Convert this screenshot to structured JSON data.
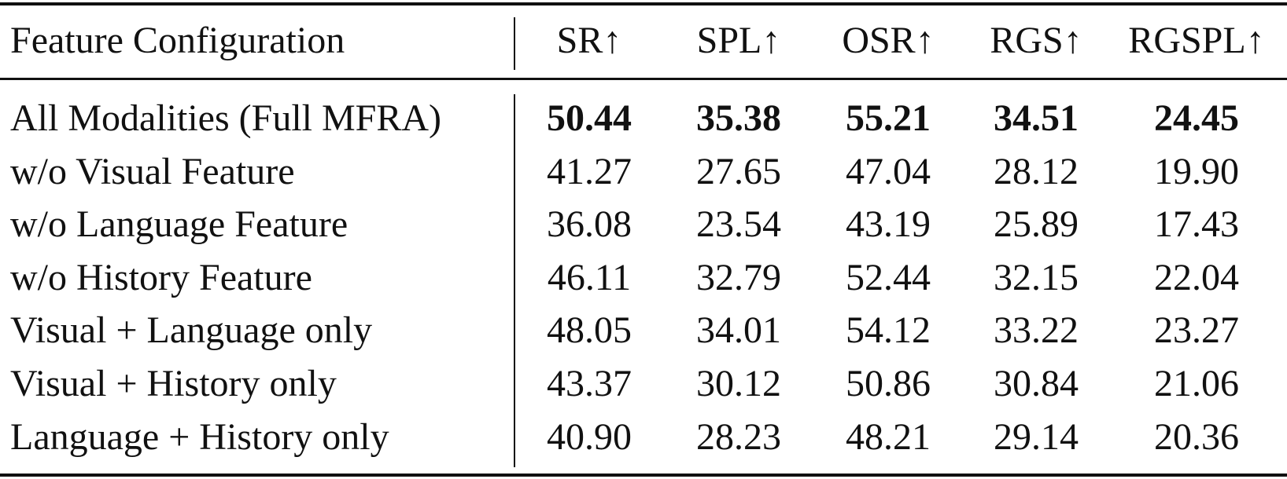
{
  "table": {
    "header": [
      "Feature Configuration",
      "SR↑",
      "SPL↑",
      "OSR↑",
      "RGS↑",
      "RGSPL↑"
    ],
    "rows": [
      [
        "All Modalities (Full MFRA)",
        "50.44",
        "35.38",
        "55.21",
        "34.51",
        "24.45"
      ],
      [
        "w/o Visual Feature",
        "41.27",
        "27.65",
        "47.04",
        "28.12",
        "19.90"
      ],
      [
        "w/o Language Feature",
        "36.08",
        "23.54",
        "43.19",
        "25.89",
        "17.43"
      ],
      [
        "w/o History Feature",
        "46.11",
        "32.79",
        "52.44",
        "32.15",
        "22.04"
      ],
      [
        "Visual + Language only",
        "48.05",
        "34.01",
        "54.12",
        "33.22",
        "23.27"
      ],
      [
        "Visual + History only",
        "43.37",
        "30.12",
        "50.86",
        "30.84",
        "21.06"
      ],
      [
        "Language + History only",
        "40.90",
        "28.23",
        "48.21",
        "29.14",
        "20.36"
      ]
    ]
  }
}
